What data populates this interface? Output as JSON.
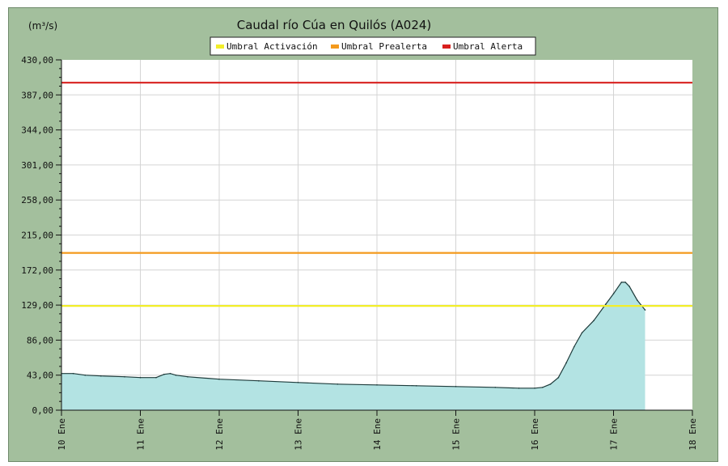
{
  "chart_data": {
    "type": "area",
    "title": "Caudal río Cúa en Quilós  (A024)",
    "ylabel": "(m³/s)",
    "xlabel": "",
    "ylim": [
      0,
      430
    ],
    "y_ticks": [
      "0,00",
      "43,00",
      "86,00",
      "129,00",
      "172,00",
      "215,00",
      "258,00",
      "301,00",
      "344,00",
      "387,00",
      "430,00"
    ],
    "x_ticks": [
      "10 Ene",
      "11 Ene",
      "12 Ene",
      "13 Ene",
      "14 Ene",
      "15 Ene",
      "16 Ene",
      "17 Ene",
      "18 Ene"
    ],
    "xlim": [
      0,
      8
    ],
    "grid": true,
    "legend_position": "top-center",
    "series": [
      {
        "name": "Caudal",
        "fill": "#b3e3e3",
        "line": "#1e3b3b",
        "x": [
          0,
          0.15,
          0.3,
          0.5,
          0.8,
          1.0,
          1.2,
          1.3,
          1.38,
          1.45,
          1.6,
          2.0,
          2.5,
          3.0,
          3.5,
          4.0,
          4.5,
          5.0,
          5.5,
          5.8,
          6.0,
          6.1,
          6.2,
          6.3,
          6.4,
          6.5,
          6.6,
          6.75,
          6.9,
          7.0,
          7.1,
          7.15,
          7.2,
          7.3,
          7.4
        ],
        "y": [
          45,
          45,
          43,
          42,
          41,
          40,
          40,
          44,
          45,
          43,
          41,
          38,
          36,
          34,
          32,
          31,
          30,
          29,
          28,
          27,
          27,
          28,
          32,
          40,
          58,
          78,
          95,
          110,
          130,
          143,
          157,
          157,
          152,
          135,
          123
        ]
      }
    ],
    "thresholds": [
      {
        "name": "Umbral Activación",
        "value": 128,
        "color": "#f2ee2a"
      },
      {
        "name": "Umbral Prealerta",
        "value": 193,
        "color": "#f49a1d"
      },
      {
        "name": "Umbral Alerta",
        "value": 402,
        "color": "#d8201e"
      }
    ]
  }
}
